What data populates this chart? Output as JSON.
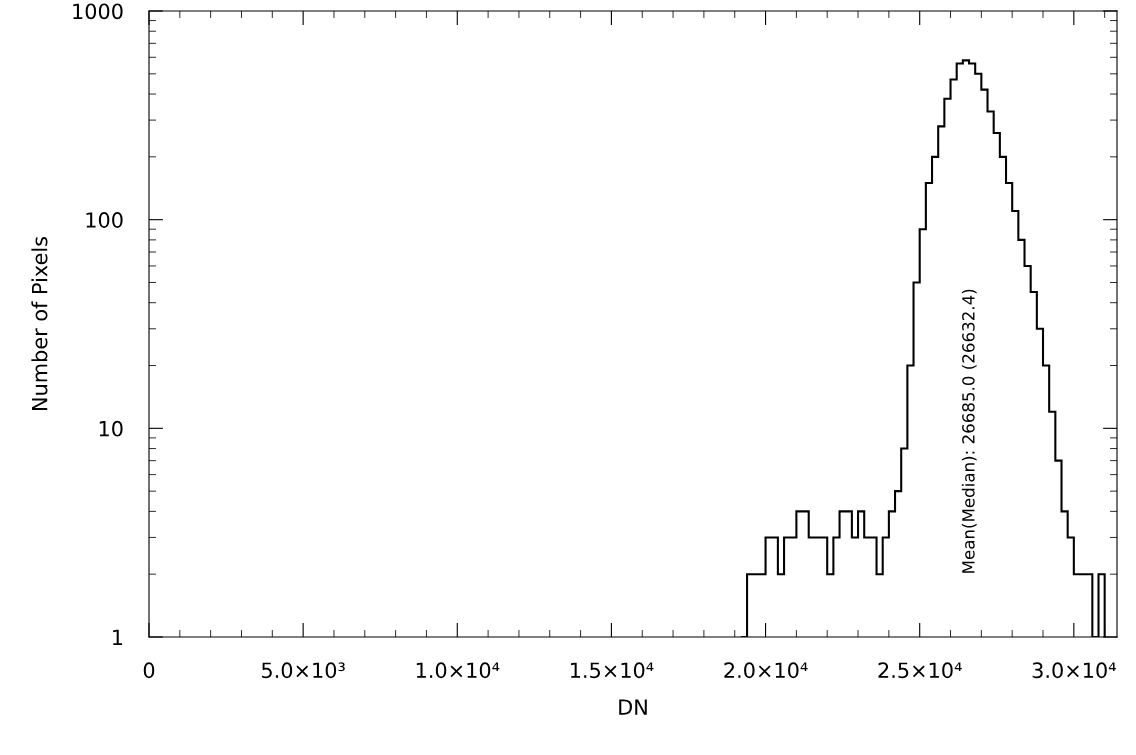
{
  "chart_data": {
    "type": "histogram",
    "xlabel": "DN",
    "ylabel": "Number of Pixels",
    "annotations": [
      "Mean(Median): 26685.0 (26632.4)"
    ],
    "color": "#000000",
    "bins": [
      19200,
      19400,
      19600,
      19800,
      20000,
      20200,
      20400,
      20600,
      20800,
      21000,
      21200,
      21400,
      21600,
      21800,
      22000,
      22200,
      22400,
      22600,
      22800,
      23000,
      23200,
      23400,
      23600,
      23800,
      24000,
      24200,
      24400,
      24600,
      24800,
      25000,
      25200,
      25400,
      25600,
      25800,
      26000,
      26200,
      26400,
      26600,
      26800,
      27000,
      27200,
      27400,
      27600,
      27800,
      28000,
      28200,
      28400,
      28600,
      28800,
      29000,
      29200,
      29400,
      29600,
      29800,
      30000,
      30200,
      30400,
      30600,
      30800,
      31000
    ],
    "values": [
      1,
      2,
      2,
      2,
      3,
      3,
      2,
      3,
      3,
      4,
      4,
      3,
      3,
      3,
      2,
      3,
      4,
      4,
      3,
      4,
      3,
      3,
      2,
      3,
      4,
      5,
      8,
      20,
      50,
      90,
      150,
      200,
      280,
      380,
      470,
      560,
      580,
      560,
      500,
      420,
      330,
      260,
      200,
      150,
      110,
      80,
      60,
      45,
      30,
      20,
      12,
      7,
      4,
      3,
      2,
      2,
      2,
      1,
      2
    ],
    "log": "y",
    "xlim": [
      0,
      31400
    ],
    "ylim": [
      1,
      1000
    ],
    "xticks": [
      0,
      {
        "value": 5000,
        "label": "5.0×10³"
      },
      {
        "value": 10000,
        "label": "1.0×10⁴"
      },
      {
        "value": 15000,
        "label": "1.5×10⁴"
      },
      {
        "value": 20000,
        "label": "2.0×10⁴"
      },
      {
        "value": 25000,
        "label": "2.5×10⁴"
      },
      {
        "value": 30000,
        "label": "3.0×10⁴"
      }
    ],
    "yticks": [
      1,
      10,
      100,
      1000
    ],
    "grid": false,
    "legend": false
  }
}
